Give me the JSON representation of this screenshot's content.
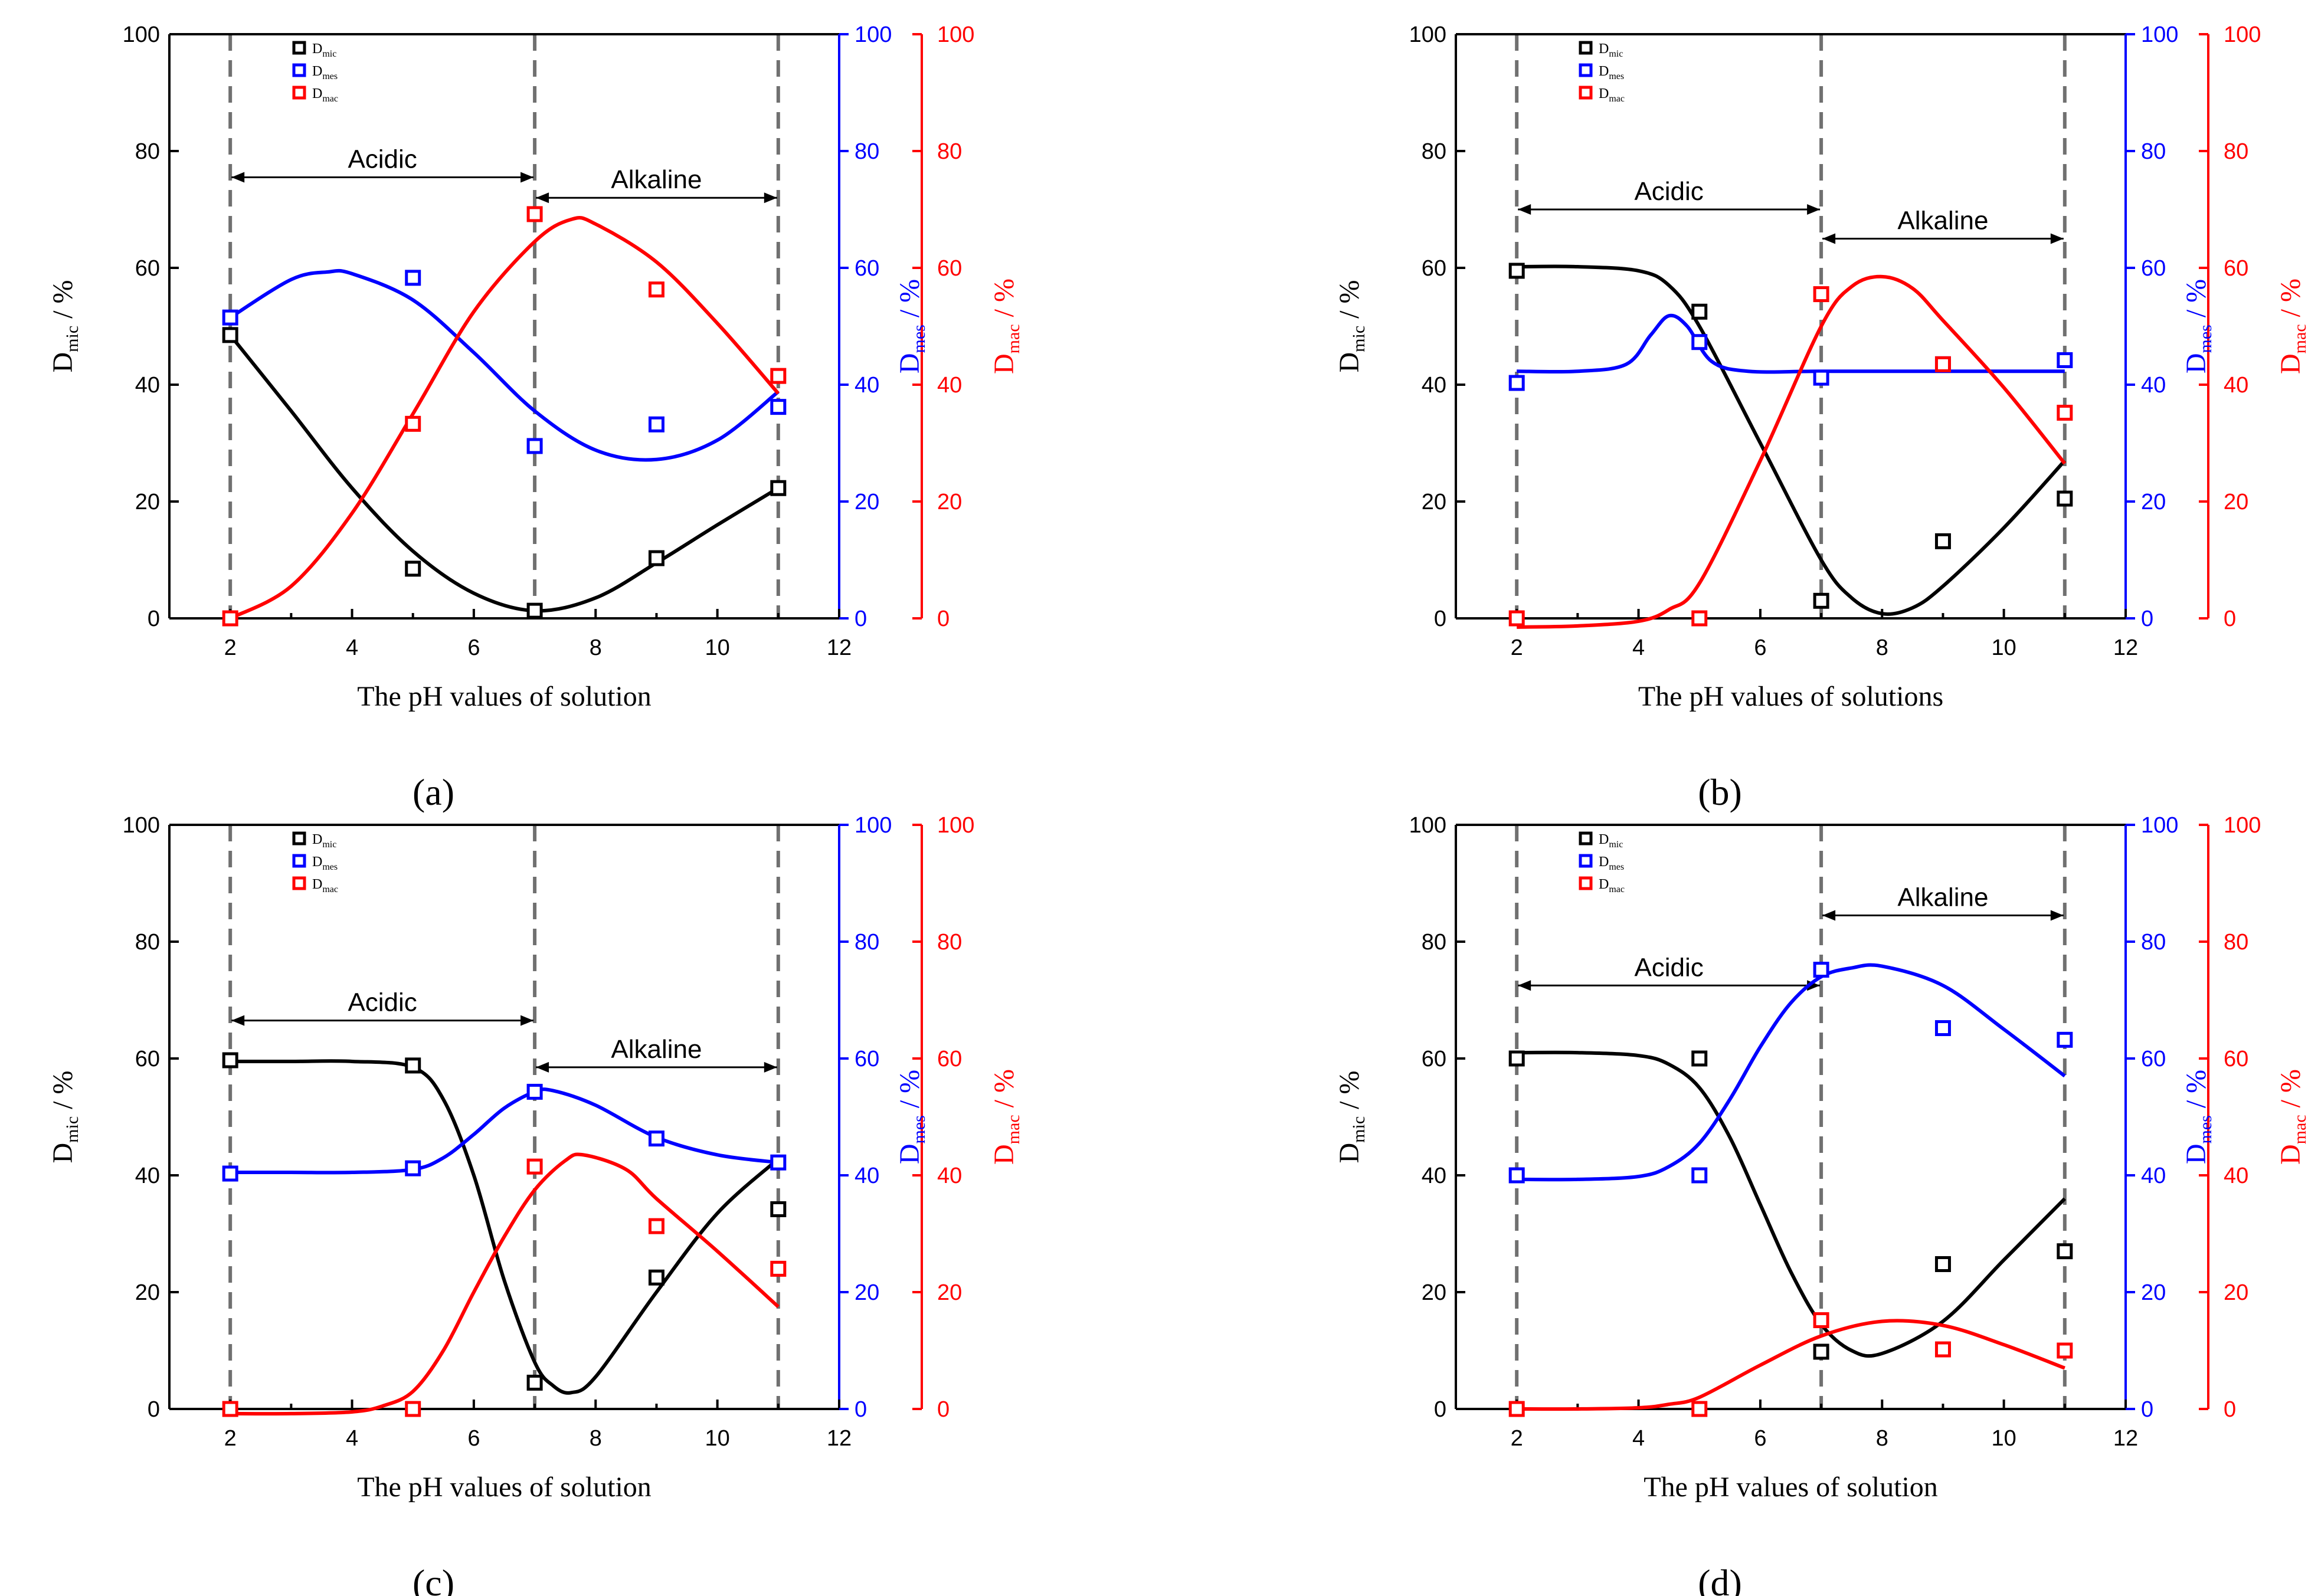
{
  "figure": {
    "colors": {
      "mic": "#000000",
      "mes": "#0000ff",
      "mac": "#ff0000",
      "guide": "#707070"
    }
  },
  "chart_data": [
    {
      "panel": "a",
      "caption": "(a)",
      "type": "scatter",
      "xlabel": "The pH values of solution",
      "ylabel_left": "D",
      "ylabel_left_sub": "mic",
      "ylabel_mid": "D",
      "ylabel_mid_sub": "mes",
      "ylabel_right": "D",
      "ylabel_right_sub": "mac",
      "ylabel_unit": " / %",
      "xlim": [
        1,
        12
      ],
      "ylim": [
        0,
        100
      ],
      "xticks": [
        2,
        4,
        6,
        8,
        10,
        12
      ],
      "yticks": [
        0,
        20,
        40,
        60,
        80,
        100
      ],
      "guides_x": [
        2,
        7,
        11
      ],
      "regions": [
        {
          "label": "Acidic",
          "from": 2,
          "to": 7,
          "y": 75.5
        },
        {
          "label": "Alkaline",
          "from": 7,
          "to": 11,
          "y": 72
        }
      ],
      "legend": [
        {
          "series": "mic",
          "label": "D",
          "sub": "mic"
        },
        {
          "series": "mes",
          "label": "D",
          "sub": "mes"
        },
        {
          "series": "mac",
          "label": "D",
          "sub": "mac"
        }
      ],
      "series": [
        {
          "name": "mic",
          "x": [
            2,
            5,
            7,
            9,
            11
          ],
          "values": [
            48.5,
            8.5,
            1.3,
            10.3,
            22.3
          ]
        },
        {
          "name": "mes",
          "x": [
            2,
            5,
            7,
            9,
            11
          ],
          "values": [
            51.5,
            58.3,
            29.5,
            33.2,
            36.2
          ]
        },
        {
          "name": "mac",
          "x": [
            2,
            5,
            7,
            9,
            11
          ],
          "values": [
            0.0,
            33.3,
            69.2,
            56.3,
            41.5
          ]
        }
      ],
      "fits": [
        {
          "name": "mic",
          "x": [
            2,
            3,
            4,
            5,
            6,
            7,
            8,
            9,
            10,
            11
          ],
          "values": [
            48.5,
            35.5,
            22.3,
            11.5,
            4.3,
            1.3,
            3.5,
            9.5,
            16.0,
            22.3
          ]
        },
        {
          "name": "mes",
          "x": [
            2,
            3,
            3.6,
            4,
            5,
            6,
            7,
            8,
            9,
            10,
            11
          ],
          "values": [
            51.5,
            58.0,
            59.3,
            59.0,
            54.5,
            45.5,
            35.5,
            28.8,
            27.2,
            30.5,
            38.8
          ]
        },
        {
          "name": "mac",
          "x": [
            2,
            3,
            4,
            5,
            6,
            7,
            7.6,
            8,
            9,
            10,
            11
          ],
          "values": [
            0.0,
            5.5,
            18.0,
            35.0,
            52.5,
            64.5,
            68.3,
            67.5,
            61.0,
            50.5,
            38.5
          ]
        }
      ]
    },
    {
      "panel": "b",
      "caption": "(b)",
      "type": "scatter",
      "xlabel": "The pH values of solutions",
      "ylabel_left": "D",
      "ylabel_left_sub": "mic",
      "ylabel_mid": "D",
      "ylabel_mid_sub": "mes",
      "ylabel_right": "D",
      "ylabel_right_sub": "mac",
      "ylabel_unit": " / %",
      "xlim": [
        1,
        12
      ],
      "ylim": [
        0,
        100
      ],
      "xticks": [
        2,
        4,
        6,
        8,
        10,
        12
      ],
      "yticks": [
        0,
        20,
        40,
        60,
        80,
        100
      ],
      "guides_x": [
        2,
        7,
        11
      ],
      "regions": [
        {
          "label": "Acidic",
          "from": 2,
          "to": 7,
          "y": 70
        },
        {
          "label": "Alkaline",
          "from": 7,
          "to": 11,
          "y": 65
        }
      ],
      "legend": [
        {
          "series": "mic",
          "label": "D",
          "sub": "mic"
        },
        {
          "series": "mes",
          "label": "D",
          "sub": "mes"
        },
        {
          "series": "mac",
          "label": "D",
          "sub": "mac"
        }
      ],
      "series": [
        {
          "name": "mic",
          "x": [
            2,
            5,
            7,
            9,
            11
          ],
          "values": [
            59.5,
            52.5,
            3.0,
            13.2,
            20.5
          ]
        },
        {
          "name": "mes",
          "x": [
            2,
            5,
            7,
            9,
            11
          ],
          "values": [
            40.3,
            47.3,
            41.2,
            43.5,
            44.2
          ]
        },
        {
          "name": "mac",
          "x": [
            2,
            5,
            7,
            9,
            11
          ],
          "values": [
            0.0,
            0.0,
            55.5,
            43.5,
            35.2
          ]
        }
      ],
      "fits": [
        {
          "name": "mic",
          "x": [
            2,
            3,
            4,
            4.5,
            5,
            6,
            7,
            7.5,
            8,
            8.5,
            9,
            10,
            11
          ],
          "values": [
            60.2,
            60.2,
            59.5,
            57.0,
            50.0,
            30.0,
            10.0,
            3.5,
            0.8,
            1.8,
            5.5,
            15.5,
            27.0
          ]
        },
        {
          "name": "mes",
          "x": [
            2,
            3,
            3.8,
            4.2,
            4.5,
            4.8,
            5.2,
            5.8,
            7,
            9,
            11
          ],
          "values": [
            42.3,
            42.3,
            43.5,
            48.5,
            51.8,
            50.0,
            44.0,
            42.3,
            42.3,
            42.3,
            42.3
          ]
        },
        {
          "name": "mac",
          "x": [
            2,
            3,
            4,
            4.5,
            5,
            6,
            7,
            7.5,
            8,
            8.5,
            9,
            10,
            11
          ],
          "values": [
            -1.5,
            -1.3,
            -0.5,
            1.5,
            6.0,
            27.0,
            50.0,
            56.8,
            58.5,
            56.5,
            51.0,
            39.5,
            26.5
          ]
        }
      ]
    },
    {
      "panel": "c",
      "caption": "(c)",
      "type": "scatter",
      "xlabel": "The pH values of solution",
      "ylabel_left": "D",
      "ylabel_left_sub": "mic",
      "ylabel_mid": "D",
      "ylabel_mid_sub": "mes",
      "ylabel_right": "D",
      "ylabel_right_sub": "mac",
      "ylabel_unit": " / %",
      "xlim": [
        1,
        12
      ],
      "ylim": [
        0,
        100
      ],
      "xticks": [
        2,
        4,
        6,
        8,
        10,
        12
      ],
      "yticks": [
        0,
        20,
        40,
        60,
        80,
        100
      ],
      "guides_x": [
        2,
        7,
        11
      ],
      "regions": [
        {
          "label": "Acidic",
          "from": 2,
          "to": 7,
          "y": 66.5
        },
        {
          "label": "Alkaline",
          "from": 7,
          "to": 11,
          "y": 58.5
        }
      ],
      "legend": [
        {
          "series": "mic",
          "label": "D",
          "sub": "mic"
        },
        {
          "series": "mes",
          "label": "D",
          "sub": "mes"
        },
        {
          "series": "mac",
          "label": "D",
          "sub": "mac"
        }
      ],
      "series": [
        {
          "name": "mic",
          "x": [
            2,
            5,
            7,
            9,
            11
          ],
          "values": [
            59.7,
            58.8,
            4.5,
            22.5,
            34.2
          ]
        },
        {
          "name": "mes",
          "x": [
            2,
            5,
            7,
            9,
            11
          ],
          "values": [
            40.3,
            41.2,
            54.3,
            46.3,
            42.2
          ]
        },
        {
          "name": "mac",
          "x": [
            2,
            5,
            7,
            9,
            11
          ],
          "values": [
            0.0,
            0.0,
            41.5,
            31.3,
            24.0
          ]
        }
      ],
      "fits": [
        {
          "name": "mic",
          "x": [
            2,
            3,
            4,
            5,
            5.5,
            6,
            6.5,
            7,
            7.3,
            7.6,
            8,
            9,
            10,
            11
          ],
          "values": [
            59.5,
            59.5,
            59.5,
            58.5,
            53.0,
            40.0,
            22.0,
            8.0,
            4.0,
            2.8,
            5.5,
            20.0,
            33.5,
            42.8
          ]
        },
        {
          "name": "mes",
          "x": [
            2,
            3,
            4,
            5,
            5.5,
            6,
            6.5,
            7,
            7.3,
            8,
            9,
            10,
            11
          ],
          "values": [
            40.5,
            40.5,
            40.5,
            41.0,
            43.0,
            47.0,
            51.5,
            54.3,
            54.5,
            52.0,
            46.5,
            43.5,
            42.2
          ]
        },
        {
          "name": "mac",
          "x": [
            2,
            3,
            4,
            4.5,
            5,
            5.5,
            6,
            6.5,
            7,
            7.5,
            7.8,
            8.5,
            9,
            10,
            11
          ],
          "values": [
            -0.8,
            -0.8,
            -0.5,
            0.5,
            3.0,
            10.0,
            20.0,
            29.5,
            37.5,
            42.5,
            43.5,
            41.0,
            36.0,
            27.0,
            17.5
          ]
        }
      ]
    },
    {
      "panel": "d",
      "caption": "(d)",
      "type": "scatter",
      "xlabel": "The pH values of solution",
      "ylabel_left": "D",
      "ylabel_left_sub": "mic",
      "ylabel_mid": "D",
      "ylabel_mid_sub": "mes",
      "ylabel_right": "D",
      "ylabel_right_sub": "mac",
      "ylabel_unit": " / %",
      "xlim": [
        1,
        12
      ],
      "ylim": [
        0,
        100
      ],
      "xticks": [
        2,
        4,
        6,
        8,
        10,
        12
      ],
      "yticks": [
        0,
        20,
        40,
        60,
        80,
        100
      ],
      "guides_x": [
        2,
        7,
        11
      ],
      "regions": [
        {
          "label": "Acidic",
          "from": 2,
          "to": 7,
          "y": 72.5
        },
        {
          "label": "Alkaline",
          "from": 7,
          "to": 11,
          "y": 84.5
        }
      ],
      "legend": [
        {
          "series": "mic",
          "label": "D",
          "sub": "mic"
        },
        {
          "series": "mes",
          "label": "D",
          "sub": "mes"
        },
        {
          "series": "mac",
          "label": "D",
          "sub": "mac"
        }
      ],
      "series": [
        {
          "name": "mic",
          "x": [
            2,
            5,
            7,
            9,
            11
          ],
          "values": [
            60.0,
            60.0,
            9.8,
            24.8,
            27.0
          ]
        },
        {
          "name": "mes",
          "x": [
            2,
            5,
            7,
            9,
            11
          ],
          "values": [
            40.0,
            40.0,
            75.2,
            65.2,
            63.2
          ]
        },
        {
          "name": "mac",
          "x": [
            2,
            5,
            7,
            9,
            11
          ],
          "values": [
            0.0,
            0.0,
            15.2,
            10.2,
            10.0
          ]
        }
      ],
      "fits": [
        {
          "name": "mic",
          "x": [
            2,
            3,
            4,
            4.5,
            5,
            5.5,
            6,
            6.5,
            7,
            7.5,
            8,
            9,
            10,
            11
          ],
          "values": [
            61.0,
            61.0,
            60.5,
            59.0,
            55.0,
            46.5,
            35.0,
            23.5,
            14.5,
            10.0,
            9.5,
            15.0,
            25.5,
            36.0
          ]
        },
        {
          "name": "mes",
          "x": [
            2,
            3,
            4,
            4.5,
            5,
            5.5,
            6,
            6.5,
            7,
            7.5,
            8,
            9,
            10,
            11
          ],
          "values": [
            39.3,
            39.3,
            39.8,
            41.5,
            45.5,
            53.0,
            62.0,
            69.5,
            74.0,
            75.5,
            75.8,
            72.5,
            65.0,
            57.0
          ]
        },
        {
          "name": "mac",
          "x": [
            2,
            3,
            4,
            4.5,
            5,
            6,
            7,
            8,
            9,
            10,
            11
          ],
          "values": [
            0.0,
            0.0,
            0.2,
            0.8,
            2.0,
            7.5,
            12.5,
            15.0,
            14.3,
            11.0,
            7.0
          ]
        }
      ]
    }
  ]
}
